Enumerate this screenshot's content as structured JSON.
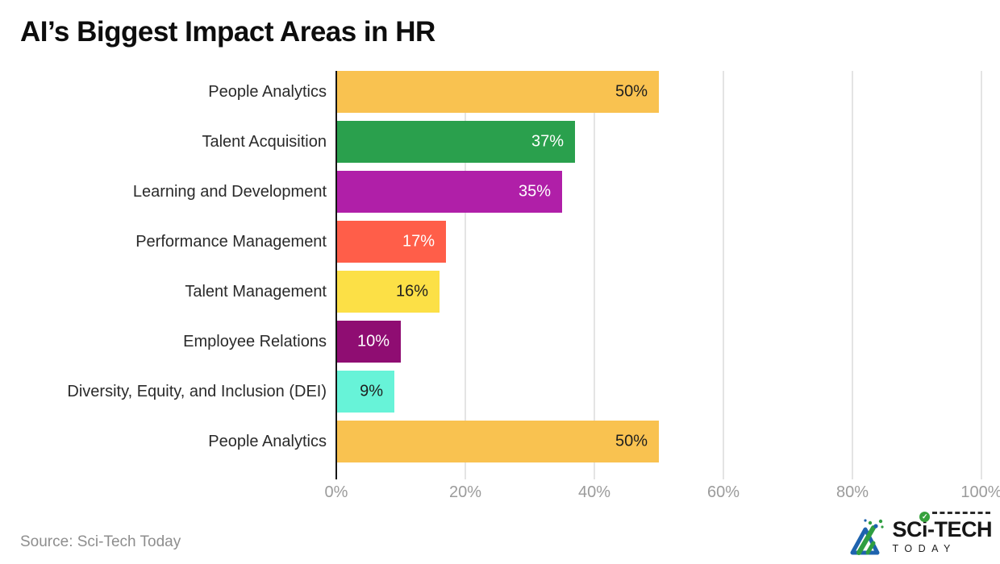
{
  "title": "AI’s Biggest Impact Areas in HR",
  "source_note": "Source: Sci-Tech Today",
  "chart_data": {
    "type": "bar",
    "orientation": "horizontal",
    "title": "AI’s Biggest Impact Areas in HR",
    "categories": [
      "People Analytics",
      "Talent Acquisition",
      "Learning and Development",
      "Performance Management",
      "Talent Management",
      "Employee Relations",
      "Diversity, Equity, and Inclusion (DEI)",
      "People Analytics"
    ],
    "values": [
      50,
      37,
      35,
      17,
      16,
      10,
      9,
      50
    ],
    "value_labels": [
      "50%",
      "37%",
      "35%",
      "17%",
      "16%",
      "10%",
      "9%",
      "50%"
    ],
    "bar_colors": [
      "#F9C250",
      "#2AA04D",
      "#B01FA8",
      "#FF5E49",
      "#FCE046",
      "#8F0D72",
      "#67F3D8",
      "#F9C250"
    ],
    "value_label_colors": [
      "#1E1E1E",
      "#FFFFFF",
      "#FFFFFF",
      "#FFFFFF",
      "#1E1E1E",
      "#FFFFFF",
      "#1E1E1E",
      "#1E1E1E"
    ],
    "xlabel": "",
    "ylabel": "",
    "xlim": [
      0,
      100
    ],
    "grid": true,
    "legend": false,
    "x_ticks": [
      {
        "label": "0%",
        "value": 0
      },
      {
        "label": "20%",
        "value": 20
      },
      {
        "label": "40%",
        "value": 40
      },
      {
        "label": "60%",
        "value": 60
      },
      {
        "label": "80%",
        "value": 80
      },
      {
        "label": "100%",
        "value": 100
      }
    ]
  },
  "logo": {
    "brand_top_left": "SC",
    "brand_top_i": "i",
    "brand_top_right": "-TECH",
    "brand_bottom": "TODAY",
    "check_glyph": "✓",
    "brand_blue": "#1E63AE",
    "brand_green": "#2F9E41"
  }
}
